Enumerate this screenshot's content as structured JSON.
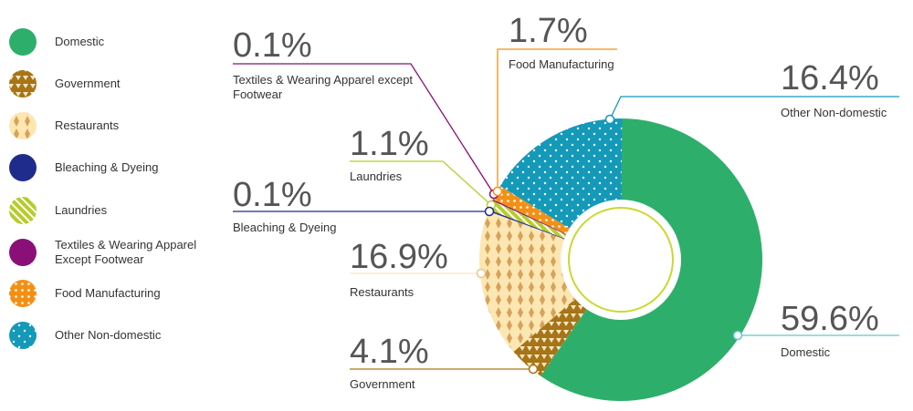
{
  "chart_data": {
    "type": "pie",
    "variant": "donut",
    "slices": [
      {
        "key": "domestic",
        "label": "Domestic",
        "value": 59.6,
        "pct_text": "59.6%",
        "color": "#2daf6b"
      },
      {
        "key": "government",
        "label": "Government",
        "value": 4.1,
        "pct_text": "4.1%",
        "color": "#a77416"
      },
      {
        "key": "restaurants",
        "label": "Restaurants",
        "value": 16.9,
        "pct_text": "16.9%",
        "color": "#fce6b2"
      },
      {
        "key": "bleaching",
        "label": "Bleaching & Dyeing",
        "value": 0.1,
        "pct_text": "0.1%",
        "color": "#1f2c8c"
      },
      {
        "key": "laundries",
        "label": "Laundries",
        "value": 1.1,
        "pct_text": "1.1%",
        "color": "#b5cd2c"
      },
      {
        "key": "textiles",
        "label": "Textiles & Wearing Apparel except Footwear",
        "value": 0.1,
        "pct_text": "0.1%",
        "color": "#8a1078"
      },
      {
        "key": "food",
        "label": "Food Manufacturing",
        "value": 1.7,
        "pct_text": "1.7%",
        "color": "#f39014"
      },
      {
        "key": "other",
        "label": "Other Non-domestic",
        "value": 16.4,
        "pct_text": "16.4%",
        "color": "#1499b9"
      }
    ],
    "legend": [
      {
        "key": "domestic",
        "lines": [
          "Domestic"
        ]
      },
      {
        "key": "government",
        "lines": [
          "Government"
        ]
      },
      {
        "key": "restaurants",
        "lines": [
          "Restaurants"
        ]
      },
      {
        "key": "bleaching",
        "lines": [
          "Bleaching & Dyeing"
        ]
      },
      {
        "key": "laundries",
        "lines": [
          "Laundries"
        ]
      },
      {
        "key": "textiles",
        "lines": [
          "Textiles & Wearing Apparel",
          "Except Footwear"
        ]
      },
      {
        "key": "food",
        "lines": [
          "Food Manufacturing"
        ]
      },
      {
        "key": "other",
        "lines": [
          "Other Non-domestic"
        ]
      }
    ],
    "callouts": {
      "textiles": {
        "lines": [
          "Textiles & Wearing Apparel except",
          "Footwear"
        ]
      },
      "food": {
        "lines": [
          "Food Manufacturing"
        ]
      },
      "other": {
        "lines": [
          "Other Non-domestic"
        ]
      },
      "laundries": {
        "lines": [
          "Laundries"
        ]
      },
      "bleaching": {
        "lines": [
          "Bleaching & Dyeing"
        ]
      },
      "restaurants": {
        "lines": [
          "Restaurants"
        ]
      },
      "government": {
        "lines": [
          "Government"
        ]
      },
      "domestic": {
        "lines": [
          "Domestic"
        ]
      }
    },
    "legend_position": "left"
  }
}
